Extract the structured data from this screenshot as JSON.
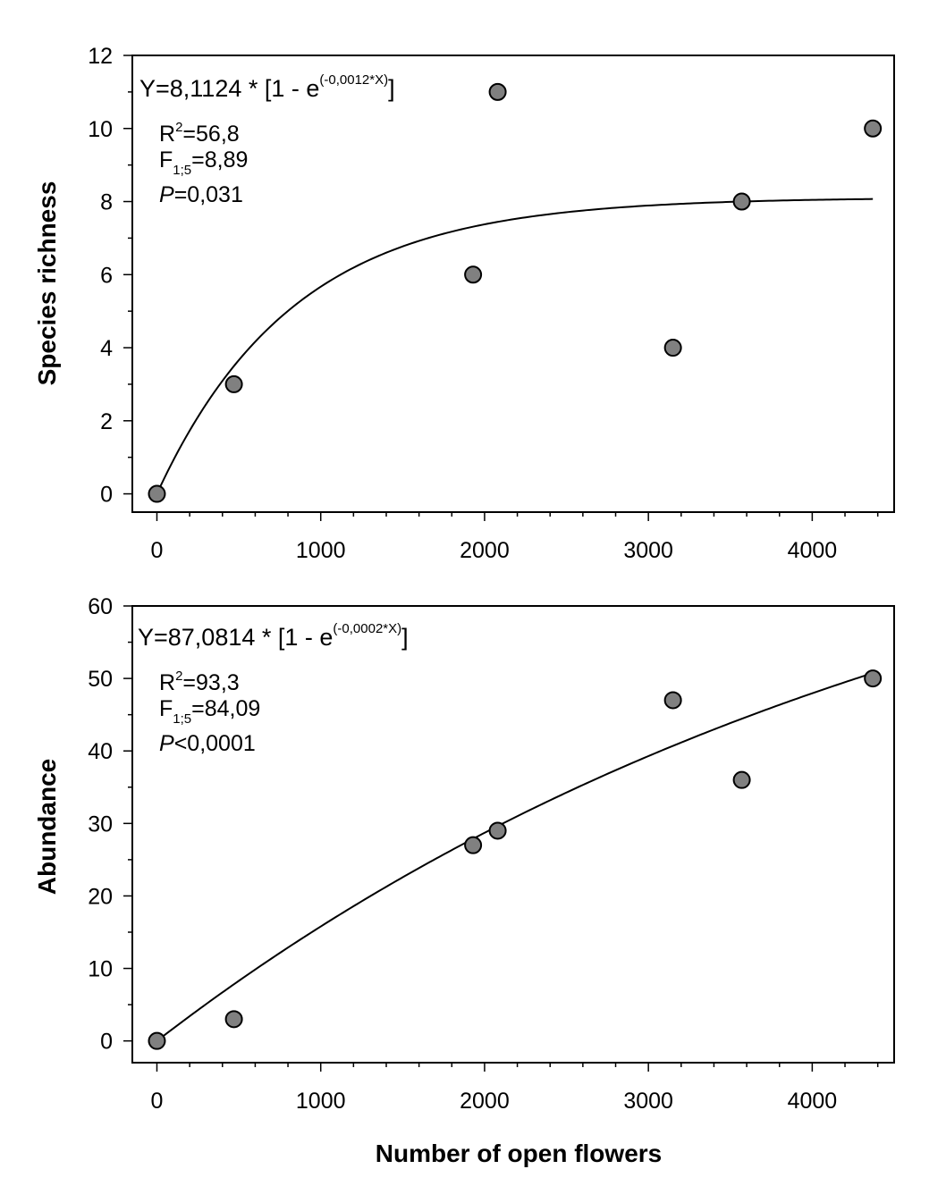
{
  "chart_data": [
    {
      "type": "scatter",
      "xlabel": "",
      "ylabel": "Species richness",
      "xlim": [
        -150,
        4500
      ],
      "ylim": [
        -0.5,
        12
      ],
      "x_ticks": [
        0,
        1000,
        2000,
        3000,
        4000
      ],
      "x_tick_labels": [
        "0",
        "1000",
        "2000",
        "3000",
        "4000"
      ],
      "x_minor_step": 200,
      "y_ticks": [
        0,
        2,
        4,
        6,
        8,
        10,
        12
      ],
      "y_tick_labels": [
        "0",
        "2",
        "4",
        "6",
        "8",
        "10",
        "12"
      ],
      "y_minor_step": 1,
      "grid": false,
      "points": [
        {
          "x": 0,
          "y": 0
        },
        {
          "x": 470,
          "y": 3
        },
        {
          "x": 1930,
          "y": 6
        },
        {
          "x": 2080,
          "y": 11
        },
        {
          "x": 3150,
          "y": 4
        },
        {
          "x": 3570,
          "y": 8
        },
        {
          "x": 4370,
          "y": 10
        }
      ],
      "fit": {
        "a": 8.1124,
        "b": 0.0012,
        "x_max": 4370
      },
      "equation": {
        "prefix": "Y=8,1124 * [1 - e",
        "exponent": "(-0,0012*X)",
        "suffix": "]"
      },
      "stats": {
        "r2_label": "R",
        "r2_sup": "2",
        "r2_value": "=56,8",
        "f_label": "F",
        "f_sub": "1;5",
        "f_value": "=8,89",
        "p_label": "P",
        "p_value": "=0,031"
      },
      "point_color": "#808080",
      "line_color": "#000000"
    },
    {
      "type": "scatter",
      "xlabel": "Number of open flowers",
      "ylabel": "Abundance",
      "xlim": [
        -150,
        4500
      ],
      "ylim": [
        -3,
        60
      ],
      "x_ticks": [
        0,
        1000,
        2000,
        3000,
        4000
      ],
      "x_tick_labels": [
        "0",
        "1000",
        "2000",
        "3000",
        "4000"
      ],
      "x_minor_step": 200,
      "y_ticks": [
        0,
        10,
        20,
        30,
        40,
        50,
        60
      ],
      "y_tick_labels": [
        "0",
        "10",
        "20",
        "30",
        "40",
        "50",
        "60"
      ],
      "y_minor_step": 5,
      "grid": false,
      "points": [
        {
          "x": 0,
          "y": 0
        },
        {
          "x": 470,
          "y": 3
        },
        {
          "x": 1930,
          "y": 27
        },
        {
          "x": 2080,
          "y": 29
        },
        {
          "x": 3150,
          "y": 47
        },
        {
          "x": 3570,
          "y": 36
        },
        {
          "x": 4370,
          "y": 50
        }
      ],
      "fit": {
        "a": 87.0814,
        "b": 0.0002,
        "x_max": 4370
      },
      "equation": {
        "prefix": "Y=87,0814 * [1 - e",
        "exponent": "(-0,0002*X)",
        "suffix": "]"
      },
      "stats": {
        "r2_label": "R",
        "r2_sup": "2",
        "r2_value": "=93,3",
        "f_label": "F",
        "f_sub": "1;5",
        "f_value": "=84,09",
        "p_label": "P",
        "p_value": "<0,0001"
      },
      "point_color": "#808080",
      "line_color": "#000000"
    }
  ]
}
